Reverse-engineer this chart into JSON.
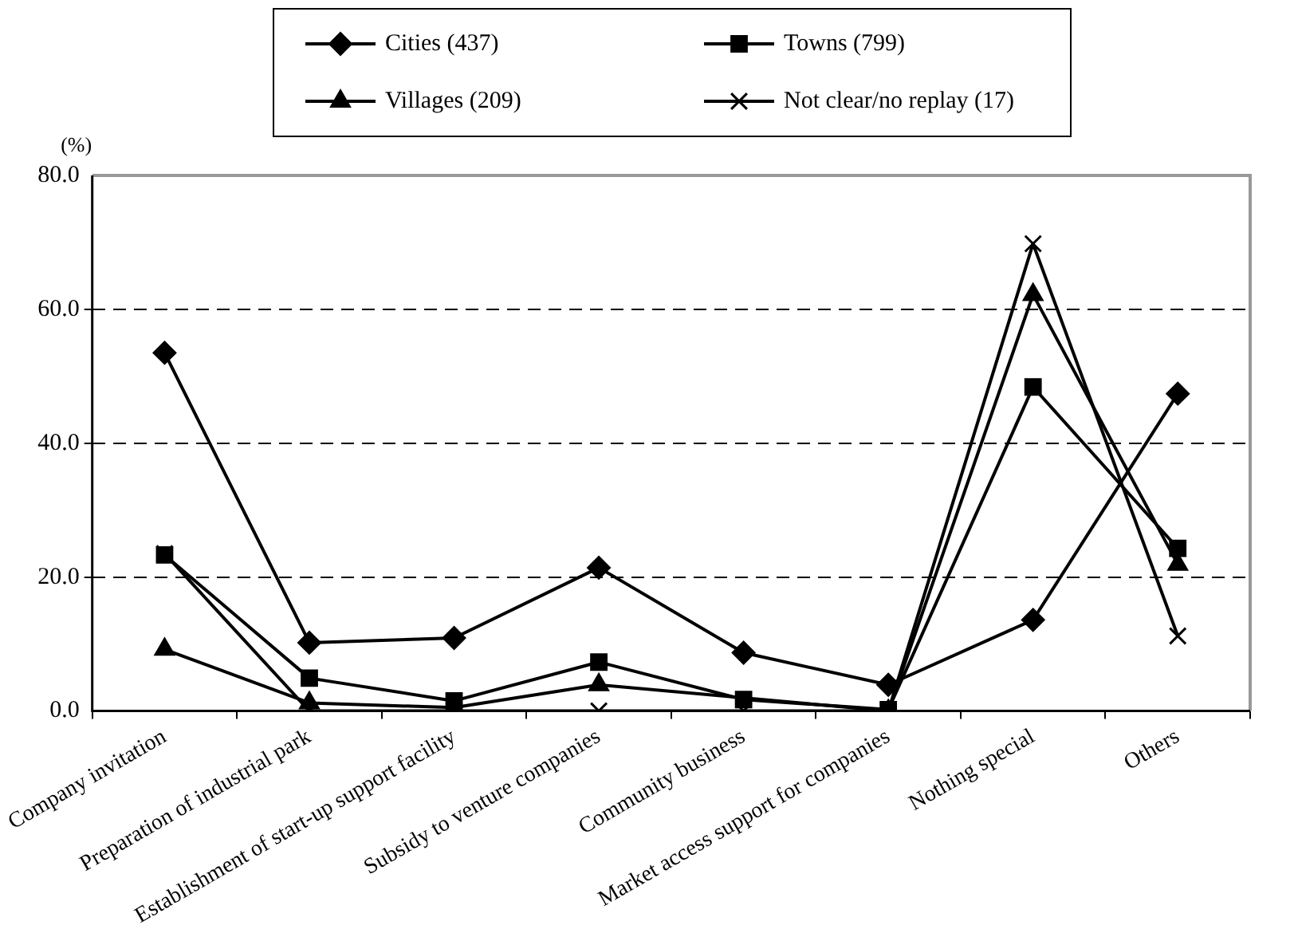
{
  "chart_data": {
    "type": "line",
    "ylabel": "(%)",
    "categories": [
      "Company invitation",
      "Preparation of industrial park",
      "Establishment of start-up support facility",
      "Subsidy to venture companies",
      "Community business",
      "Market access support for companies",
      "Nothing special",
      "Others"
    ],
    "series": [
      {
        "name": "Cities (437)",
        "color": "#000000",
        "marker": "diamond",
        "values": [
          53.5,
          10.2,
          10.9,
          21.4,
          8.7,
          3.9,
          13.6,
          47.4
        ]
      },
      {
        "name": "Towns (799)",
        "color": "#000000",
        "marker": "square",
        "values": [
          23.3,
          4.9,
          1.5,
          7.3,
          1.7,
          0.2,
          48.4,
          24.3
        ]
      },
      {
        "name": "Villages (209)",
        "color": "#000000",
        "marker": "triangle",
        "values": [
          9.2,
          1.2,
          0.5,
          3.9,
          null,
          0,
          62.2,
          21.9
        ]
      },
      {
        "name": "Not clear/no replay (17)",
        "color": "#000000",
        "marker": "cross",
        "values": [
          23.5,
          0,
          0,
          0,
          0,
          0,
          69.8,
          11.2
        ]
      }
    ],
    "ylim": [
      0,
      80
    ],
    "yticks": [
      {
        "value": 0,
        "label": "0.0"
      },
      {
        "value": 20,
        "label": "20.0"
      },
      {
        "value": 40,
        "label": "40.0"
      },
      {
        "value": 60,
        "label": "60.0"
      },
      {
        "value": 80,
        "label": "80.0"
      }
    ],
    "grid": "y",
    "legend": "top",
    "line_style": "solid"
  }
}
